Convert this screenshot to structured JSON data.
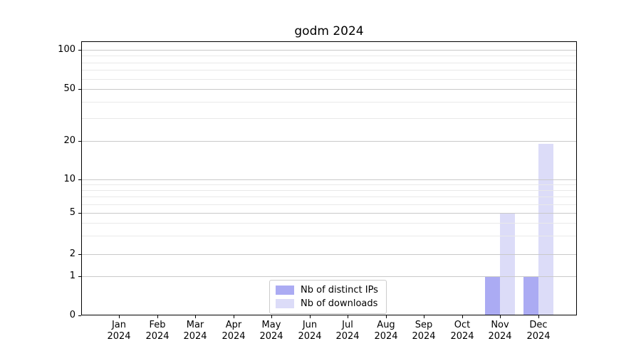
{
  "chart_data": {
    "type": "bar",
    "title": "godm 2024",
    "categories": [
      "Jan",
      "Feb",
      "Mar",
      "Apr",
      "May",
      "Jun",
      "Jul",
      "Aug",
      "Sep",
      "Oct",
      "Nov",
      "Dec"
    ],
    "category_year": "2024",
    "series": [
      {
        "name": "Nb of distinct IPs",
        "color": "#ababf3",
        "values": [
          0,
          0,
          0,
          0,
          0,
          0,
          0,
          0,
          0,
          0,
          1,
          1
        ]
      },
      {
        "name": "Nb of downloads",
        "color": "#dcdcf8",
        "values": [
          0,
          0,
          0,
          0,
          0,
          0,
          0,
          0,
          0,
          0,
          5,
          19
        ]
      }
    ],
    "y_axis": {
      "scale": "symlog",
      "major_ticks": [
        0,
        1,
        2,
        5,
        10,
        20,
        50,
        100
      ],
      "minor_ticks": [
        3,
        4,
        6,
        7,
        8,
        9,
        30,
        40,
        60,
        70,
        80,
        90
      ]
    },
    "legend": {
      "position": "lower-center"
    },
    "grid": true,
    "colors": {
      "background": "#ffffff",
      "spine": "#000000",
      "major_grid": "#c9c9c9",
      "minor_grid": "#e9e9e9"
    }
  }
}
